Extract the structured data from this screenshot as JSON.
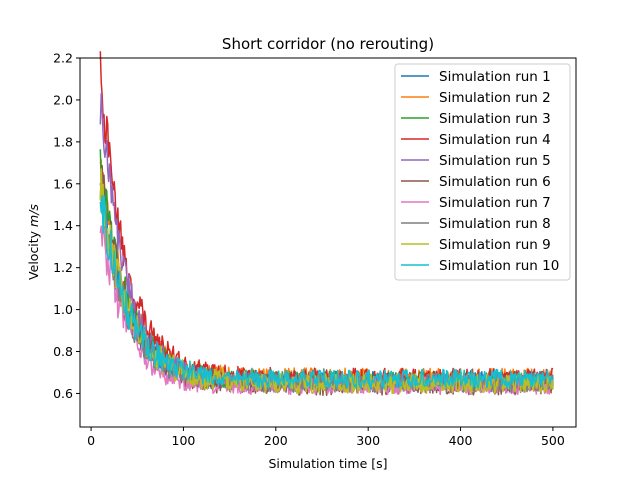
{
  "chart_data": {
    "type": "line",
    "title": "Short corridor (no rerouting)",
    "xlabel": "Simulation time [s]",
    "ylabel_prefix": "Velocity ",
    "ylabel_unit": "m/s",
    "xlim": [
      -12,
      525
    ],
    "ylim": [
      0.44,
      2.2
    ],
    "xticks": [
      0,
      100,
      200,
      300,
      400,
      500
    ],
    "yticks": [
      0.6,
      0.8,
      1.0,
      1.2,
      1.4,
      1.6,
      1.8,
      2.0,
      2.2
    ],
    "yticklabels": [
      "0.6",
      "0.8",
      "1.0",
      "1.2",
      "1.4",
      "1.6",
      "1.8",
      "2.0",
      "2.2"
    ],
    "x_start": 10,
    "x_end": 500,
    "legend_position": "upper-right",
    "series": [
      {
        "name": "Simulation run 1",
        "color": "#1f77b4",
        "start": 1.55,
        "plateau": 0.66,
        "tau": 30,
        "noise": 0.045
      },
      {
        "name": "Simulation run 2",
        "color": "#ff7f0e",
        "start": 1.62,
        "plateau": 0.67,
        "tau": 31,
        "noise": 0.05
      },
      {
        "name": "Simulation run 3",
        "color": "#2ca02c",
        "start": 1.68,
        "plateau": 0.66,
        "tau": 30,
        "noise": 0.045
      },
      {
        "name": "Simulation run 4",
        "color": "#d62728",
        "start": 2.12,
        "plateau": 0.67,
        "tau": 29,
        "noise": 0.05
      },
      {
        "name": "Simulation run 5",
        "color": "#9467bd",
        "start": 2.0,
        "plateau": 0.65,
        "tau": 28,
        "noise": 0.045
      },
      {
        "name": "Simulation run 6",
        "color": "#8c564b",
        "start": 1.65,
        "plateau": 0.64,
        "tau": 30,
        "noise": 0.05
      },
      {
        "name": "Simulation run 7",
        "color": "#e377c2",
        "start": 1.45,
        "plateau": 0.64,
        "tau": 27,
        "noise": 0.045
      },
      {
        "name": "Simulation run 8",
        "color": "#7f7f7f",
        "start": 1.6,
        "plateau": 0.65,
        "tau": 29,
        "noise": 0.045
      },
      {
        "name": "Simulation run 9",
        "color": "#bcbd22",
        "start": 1.58,
        "plateau": 0.65,
        "tau": 31,
        "noise": 0.05
      },
      {
        "name": "Simulation run 10",
        "color": "#17becf",
        "start": 1.55,
        "plateau": 0.67,
        "tau": 30,
        "noise": 0.045
      }
    ]
  }
}
